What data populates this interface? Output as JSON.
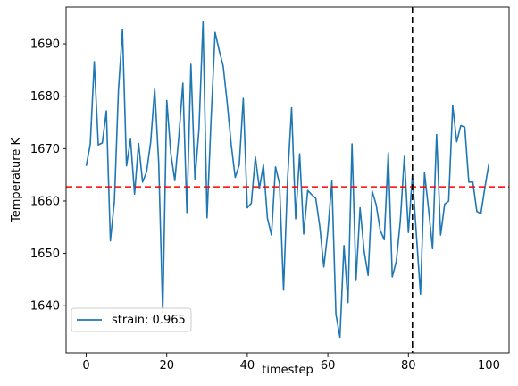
{
  "chart_data": {
    "type": "line",
    "title": "",
    "xlabel": "timestep",
    "ylabel": "Temperature K",
    "xlim": [
      -5,
      105
    ],
    "ylim": [
      1631,
      1697
    ],
    "xticks": [
      0,
      20,
      40,
      60,
      80,
      100
    ],
    "yticks": [
      1640,
      1650,
      1660,
      1670,
      1680,
      1690
    ],
    "grid": false,
    "legend_position": "lower-left",
    "series": [
      {
        "name": "strain: 0.965",
        "color": "#1f77b4",
        "x": [
          0,
          1,
          2,
          3,
          4,
          5,
          6,
          7,
          8,
          9,
          10,
          11,
          12,
          13,
          14,
          15,
          16,
          17,
          18,
          19,
          20,
          21,
          22,
          23,
          24,
          25,
          26,
          27,
          28,
          29,
          30,
          31,
          32,
          33,
          34,
          35,
          36,
          37,
          38,
          39,
          40,
          41,
          42,
          43,
          44,
          45,
          46,
          47,
          48,
          49,
          50,
          51,
          52,
          53,
          54,
          55,
          56,
          57,
          58,
          59,
          60,
          61,
          62,
          63,
          64,
          65,
          66,
          67,
          68,
          69,
          70,
          71,
          72,
          73,
          74,
          75,
          76,
          77,
          78,
          79,
          80,
          81,
          82,
          83,
          84,
          85,
          86,
          87,
          88,
          89,
          90,
          91,
          92,
          93,
          94,
          95,
          96,
          97,
          98,
          99,
          100
        ],
        "y": [
          1666.7,
          1670.8,
          1686.6,
          1670.7,
          1671.1,
          1677.2,
          1652.4,
          1660.0,
          1681.1,
          1692.7,
          1666.7,
          1671.8,
          1661.3,
          1671.0,
          1663.6,
          1665.6,
          1671.2,
          1681.4,
          1667.3,
          1638.5,
          1679.2,
          1669.1,
          1663.9,
          1672.3,
          1682.5,
          1657.8,
          1686.1,
          1664.2,
          1673.7,
          1694.2,
          1656.8,
          1675.5,
          1692.2,
          1688.8,
          1685.8,
          1678.8,
          1670.8,
          1664.5,
          1666.9,
          1679.6,
          1658.7,
          1659.6,
          1668.4,
          1662.4,
          1666.9,
          1656.7,
          1653.5,
          1666.5,
          1663.3,
          1643.0,
          1664.2,
          1677.8,
          1656.6,
          1669.0,
          1653.7,
          1662.0,
          1661.2,
          1660.5,
          1655.1,
          1647.4,
          1654.2,
          1663.8,
          1638.4,
          1634.0,
          1651.5,
          1640.6,
          1670.9,
          1645.0,
          1658.7,
          1650.5,
          1645.8,
          1661.9,
          1659.3,
          1654.4,
          1652.6,
          1669.2,
          1645.5,
          1648.5,
          1656.2,
          1668.5,
          1654.0,
          1664.9,
          1653.4,
          1642.2,
          1665.4,
          1658.5,
          1650.9,
          1672.7,
          1653.5,
          1659.4,
          1660.0,
          1678.2,
          1671.3,
          1674.4,
          1674.1,
          1663.6,
          1663.6,
          1658.0,
          1657.6,
          1662.6,
          1667.2
        ]
      }
    ],
    "reference_lines": [
      {
        "orientation": "horizontal",
        "value": 1662.7,
        "color": "#ff0000",
        "style": "dashed"
      },
      {
        "orientation": "vertical",
        "value": 81,
        "color": "#000000",
        "style": "dashed"
      }
    ]
  }
}
